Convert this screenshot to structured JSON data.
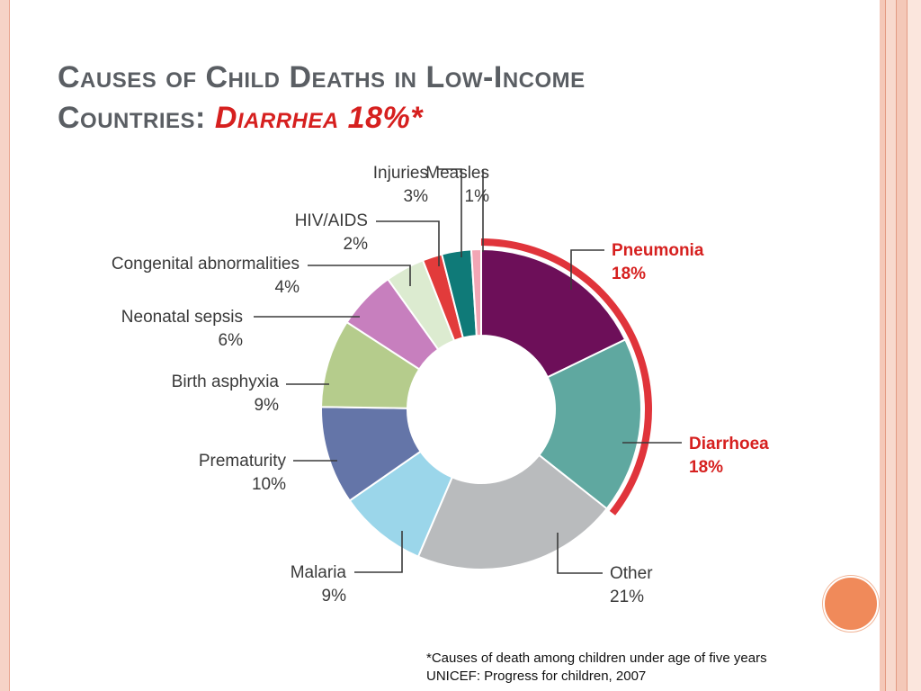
{
  "title": {
    "line1": "Causes of Child Deaths in Low-Income",
    "line2_prefix": "Countries: ",
    "line2_highlight": "Diarrhea 18%*"
  },
  "chart_data": {
    "type": "pie",
    "variant": "donut",
    "title": "",
    "slices": [
      {
        "label": "Pneumonia",
        "value": 18,
        "pct_label": "18%",
        "color": "#6d0f59",
        "label_color": "#d6201f"
      },
      {
        "label": "Diarrhoea",
        "value": 18,
        "pct_label": "18%",
        "color": "#5fa8a0",
        "label_color": "#d6201f"
      },
      {
        "label": "Other",
        "value": 21,
        "pct_label": "21%",
        "color": "#b9bbbd",
        "label_color": "#3a3a3a"
      },
      {
        "label": "Malaria",
        "value": 9,
        "pct_label": "9%",
        "color": "#9bd6ea",
        "label_color": "#3a3a3a"
      },
      {
        "label": "Prematurity",
        "value": 10,
        "pct_label": "10%",
        "color": "#6475a8",
        "label_color": "#3a3a3a"
      },
      {
        "label": "Birth asphyxia",
        "value": 9,
        "pct_label": "9%",
        "color": "#b5cc8c",
        "label_color": "#3a3a3a"
      },
      {
        "label": "Neonatal sepsis",
        "value": 6,
        "pct_label": "6%",
        "color": "#c77fbe",
        "label_color": "#3a3a3a"
      },
      {
        "label": "Congenital abnormalities",
        "value": 4,
        "pct_label": "4%",
        "color": "#dcebd0",
        "label_color": "#3a3a3a"
      },
      {
        "label": "HIV/AIDS",
        "value": 2,
        "pct_label": "2%",
        "color": "#e23b3b",
        "label_color": "#3a3a3a"
      },
      {
        "label": "Injuries",
        "value": 3,
        "pct_label": "3%",
        "color": "#0f7a78",
        "label_color": "#3a3a3a"
      },
      {
        "label": "Measles",
        "value": 1,
        "pct_label": "1%",
        "color": "#f2a6b5",
        "label_color": "#3a3a3a"
      }
    ],
    "highlight": {
      "slices": [
        "Pneumonia",
        "Diarrhoea"
      ],
      "color": "#e0343b"
    }
  },
  "footnote": {
    "line1": "*Causes of death among children under age of five years",
    "line2": "UNICEF: Progress for children, 2007"
  }
}
